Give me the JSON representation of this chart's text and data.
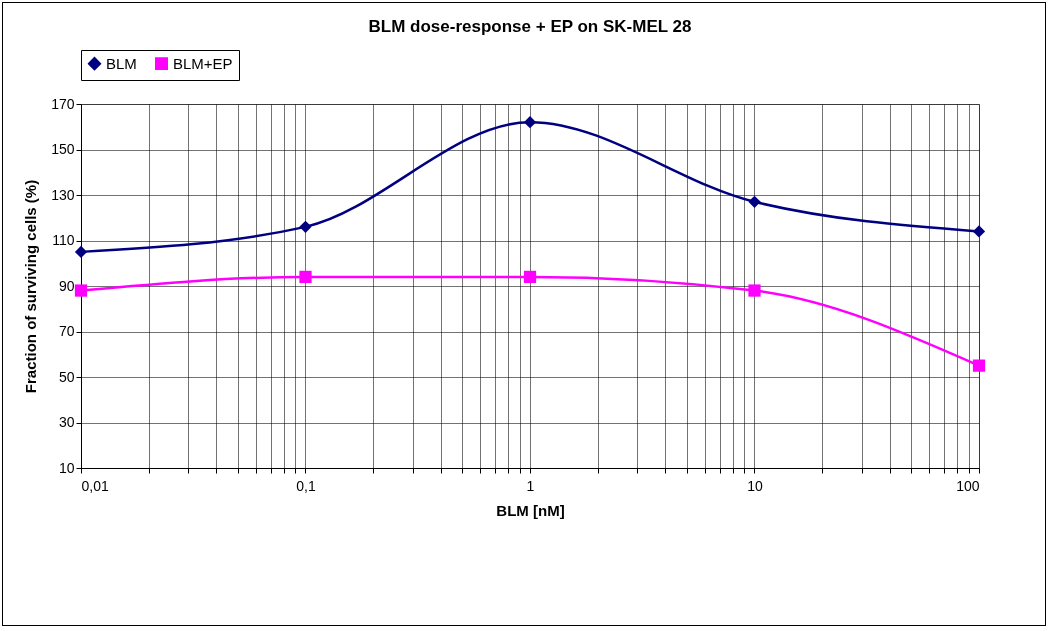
{
  "chart_data": {
    "type": "line",
    "title": "BLM dose-response + EP on SK-MEL 28",
    "xlabel": "BLM [nM]",
    "ylabel": "Fraction of surviving cells (%)",
    "x": [
      0.01,
      0.1,
      1,
      10,
      100
    ],
    "series": [
      {
        "name": "BLM",
        "color": "#000080",
        "marker": "diamond",
        "values": [
          105,
          116,
          162,
          127,
          114
        ]
      },
      {
        "name": "BLM+EP",
        "color": "#ff00ff",
        "marker": "square",
        "values": [
          88,
          94,
          94,
          88,
          55
        ]
      }
    ],
    "log": "x",
    "xlim": [
      0.01,
      100
    ],
    "xticks": [
      {
        "value": 0.01,
        "label": "0,01"
      },
      {
        "value": 0.02,
        "label": null
      },
      {
        "value": 0.03,
        "label": null
      },
      {
        "value": 0.04,
        "label": null
      },
      {
        "value": 0.05,
        "label": null
      },
      {
        "value": 0.06,
        "label": null
      },
      {
        "value": 0.07,
        "label": null
      },
      {
        "value": 0.08,
        "label": null
      },
      {
        "value": 0.09,
        "label": null
      },
      {
        "value": 0.1,
        "label": "0,1"
      },
      {
        "value": 0.2,
        "label": null
      },
      {
        "value": 0.3,
        "label": null
      },
      {
        "value": 0.4,
        "label": null
      },
      {
        "value": 0.5,
        "label": null
      },
      {
        "value": 0.6,
        "label": null
      },
      {
        "value": 0.7,
        "label": null
      },
      {
        "value": 0.8,
        "label": null
      },
      {
        "value": 0.9,
        "label": null
      },
      1,
      {
        "value": 2,
        "label": null
      },
      {
        "value": 3,
        "label": null
      },
      {
        "value": 4,
        "label": null
      },
      {
        "value": 5,
        "label": null
      },
      {
        "value": 6,
        "label": null
      },
      {
        "value": 7,
        "label": null
      },
      {
        "value": 8,
        "label": null
      },
      {
        "value": 9,
        "label": null
      },
      10,
      {
        "value": 20,
        "label": null
      },
      {
        "value": 30,
        "label": null
      },
      {
        "value": 40,
        "label": null
      },
      {
        "value": 50,
        "label": null
      },
      {
        "value": 60,
        "label": null
      },
      {
        "value": 70,
        "label": null
      },
      {
        "value": 80,
        "label": null
      },
      {
        "value": 90,
        "label": null
      },
      100
    ],
    "ylim": [
      10,
      170
    ],
    "yticks": [
      10,
      30,
      50,
      70,
      90,
      110,
      130,
      150,
      170
    ],
    "grid": true,
    "legend": "top",
    "line_style": "solid"
  }
}
